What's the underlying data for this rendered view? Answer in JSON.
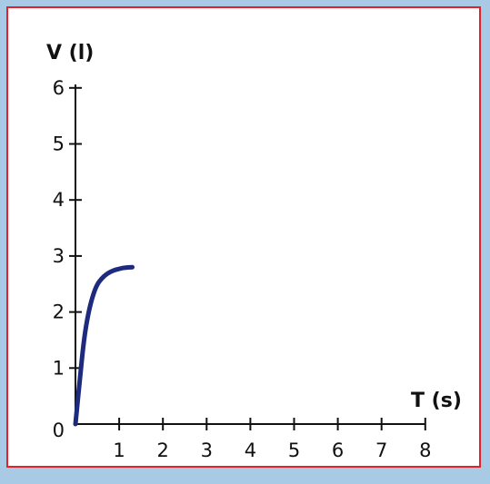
{
  "colors": {
    "background": "#a9cae5",
    "panel": "#ffffff",
    "frame": "#e4212b",
    "axis": "#111111",
    "curve": "#1d2a7e"
  },
  "chart_data": {
    "type": "line",
    "xlabel": "T (s)",
    "ylabel": "V (l)",
    "xlim": [
      0,
      8
    ],
    "ylim": [
      0,
      6
    ],
    "x_ticks": [
      "0",
      "1",
      "2",
      "3",
      "4",
      "5",
      "6",
      "7",
      "8"
    ],
    "y_ticks": [
      "0",
      "1",
      "2",
      "3",
      "4",
      "5",
      "6"
    ],
    "grid": false,
    "series": [
      {
        "x": [
          0,
          0.1,
          0.2,
          0.3,
          0.4,
          0.5,
          0.6,
          0.7,
          0.8,
          0.9,
          1.0,
          1.1,
          1.3
        ],
        "y": [
          0,
          0.8,
          1.55,
          2.0,
          2.3,
          2.5,
          2.6,
          2.67,
          2.72,
          2.75,
          2.77,
          2.79,
          2.8
        ]
      }
    ]
  }
}
